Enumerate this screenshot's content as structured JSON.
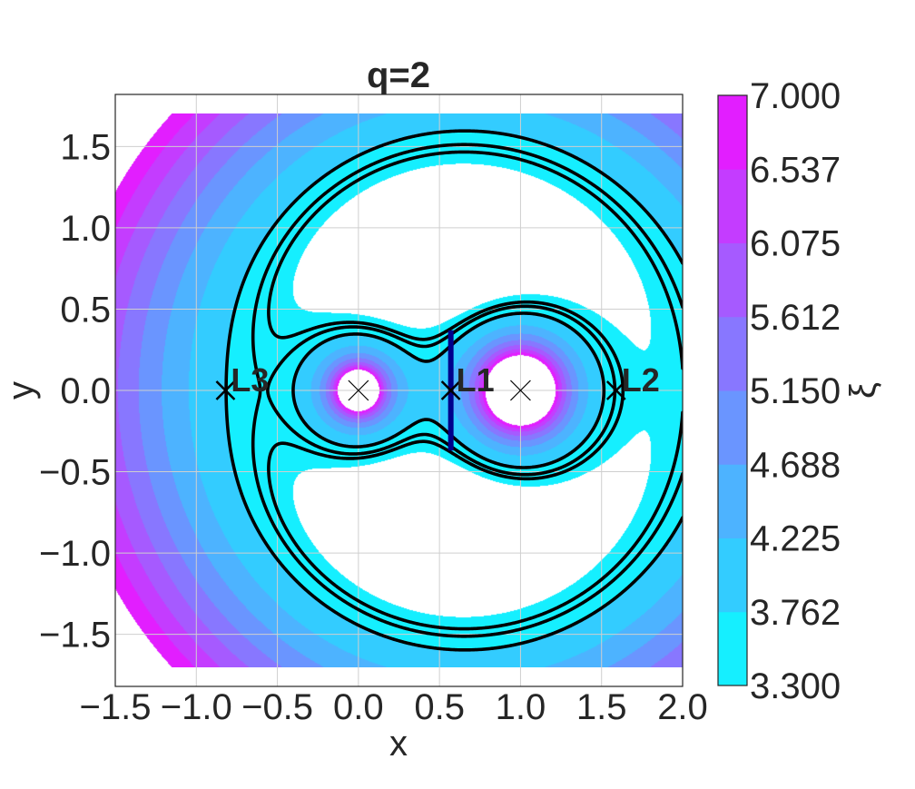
{
  "chart_data": {
    "type": "contour",
    "title": "q=2",
    "xlabel": "x",
    "ylabel": "y",
    "xlim": [
      -1.5,
      2.0
    ],
    "ylim": [
      -1.82,
      1.82
    ],
    "data_extent": {
      "x": [
        -1.5,
        2.0
      ],
      "y": [
        -1.7,
        1.7
      ]
    },
    "xticks": [
      -1.5,
      -1.0,
      -0.5,
      0.0,
      0.5,
      1.0,
      1.5,
      2.0
    ],
    "xtick_labels": [
      "−1.5",
      "−1.0",
      "−0.5",
      "0.0",
      "0.5",
      "1.0",
      "1.5",
      "2.0"
    ],
    "yticks": [
      -1.5,
      -1.0,
      -0.5,
      0.0,
      0.5,
      1.0,
      1.5
    ],
    "ytick_labels": [
      "−1.5",
      "−1.0",
      "−0.5",
      "0.0",
      "0.5",
      "1.0",
      "1.5"
    ],
    "grid": true,
    "mass_ratio": 2,
    "masses": [
      {
        "x": 0.0,
        "y": 0.0,
        "marker": "x"
      },
      {
        "x": 1.0,
        "y": 0.0,
        "marker": "x"
      }
    ],
    "lagrange_points": [
      {
        "name": "L1",
        "x": 0.57,
        "y": 0.0
      },
      {
        "name": "L2",
        "x": 1.59,
        "y": 0.0
      },
      {
        "name": "L3",
        "x": -0.82,
        "y": 0.0
      }
    ],
    "contour_lines": [
      3.45,
      3.55,
      3.75
    ],
    "l1_segment": {
      "x": 0.57,
      "y": [
        -0.37,
        0.37
      ],
      "color": "#00008b"
    },
    "colorbar": {
      "label": "ξ",
      "min": 3.3,
      "max": 7.0,
      "tick_labels": [
        "3.300",
        "3.762",
        "4.225",
        "4.688",
        "5.150",
        "5.612",
        "6.075",
        "6.537",
        "7.000"
      ],
      "level_colors": [
        "#15efff",
        "#33ccff",
        "#4db3ff",
        "#6a95ff",
        "#8877ff",
        "#a65aff",
        "#c43cff",
        "#e21eff"
      ]
    }
  }
}
